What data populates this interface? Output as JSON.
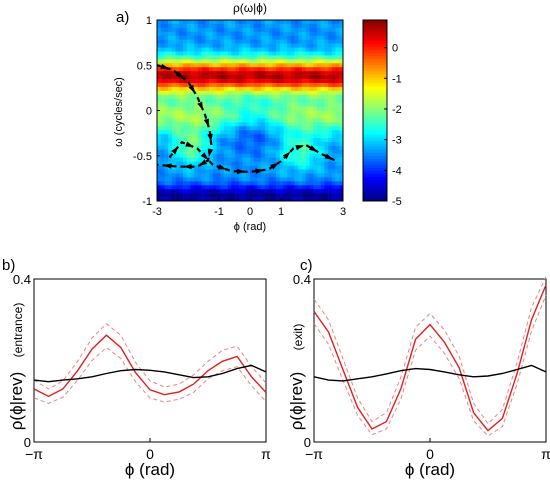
{
  "chart_data": [
    {
      "panel": "a)",
      "type": "heatmap",
      "title": "ρ(ω|ϕ)",
      "xlabel": "ϕ (rad)",
      "ylabel": "ω (cycles/sec)",
      "xlim": [
        -3,
        3
      ],
      "ylim": [
        -1,
        1
      ],
      "x_ticks": [
        "-3",
        "-1",
        "0",
        "1",
        "3"
      ],
      "y_ticks": [
        "1",
        "0.5",
        "0",
        "-0.5",
        "-1"
      ],
      "colorbar": {
        "ticks": [
          "0",
          "-1",
          "-2",
          "-3",
          "-4",
          "-5"
        ],
        "range": [
          -5,
          0.9
        ],
        "colormap": "jet"
      },
      "features": [
        {
          "description": "high-density band",
          "omega_center": 0.38,
          "omega_width": 0.18,
          "value": 0.6
        },
        {
          "description": "moderate ridge near zero",
          "omega_center": -0.05,
          "value": -1.7
        },
        {
          "description": "low-density band",
          "omega_center": -0.7,
          "value": -3.0
        }
      ],
      "overlay_curves": [
        {
          "style": "dashed-arrow",
          "points": [
            [
              -3.0,
              0.5
            ],
            [
              -2.5,
              0.45
            ],
            [
              -2.0,
              0.32
            ],
            [
              -1.7,
              0.15
            ],
            [
              -1.45,
              -0.05
            ],
            [
              -1.3,
              -0.22
            ],
            [
              -1.25,
              -0.38
            ],
            [
              -1.35,
              -0.55
            ],
            [
              -1.7,
              -0.62
            ],
            [
              -2.3,
              -0.62
            ],
            [
              -3.0,
              -0.6
            ]
          ]
        },
        {
          "style": "dashed-arrow",
          "points": [
            [
              -2.6,
              -0.52
            ],
            [
              -2.2,
              -0.35
            ],
            [
              -1.7,
              -0.42
            ],
            [
              -1.2,
              -0.6
            ],
            [
              -0.6,
              -0.67
            ],
            [
              0.0,
              -0.68
            ],
            [
              0.6,
              -0.65
            ],
            [
              1.0,
              -0.56
            ],
            [
              1.4,
              -0.42
            ],
            [
              1.8,
              -0.38
            ],
            [
              2.3,
              -0.48
            ],
            [
              2.8,
              -0.56
            ]
          ]
        }
      ]
    },
    {
      "panel": "b)",
      "type": "line",
      "xlabel": "ϕ (rad)",
      "ylabel": "ρ(ϕ|rev)",
      "ylabel_sub": "(entrance)",
      "xlim": [
        -3.1416,
        3.1416
      ],
      "ylim": [
        0,
        0.4
      ],
      "x_ticks": [
        "−π",
        "0",
        "π"
      ],
      "y_ticks": [
        "0.4",
        "0"
      ],
      "x": [
        -3.14,
        -2.75,
        -2.36,
        -1.96,
        -1.57,
        -1.18,
        -0.79,
        -0.39,
        0.0,
        0.39,
        0.79,
        1.18,
        1.57,
        1.96,
        2.36,
        2.75,
        3.14
      ],
      "series": [
        {
          "color": "#000000",
          "style": "solid",
          "values": [
            0.152,
            0.148,
            0.152,
            0.155,
            0.16,
            0.168,
            0.175,
            0.178,
            0.176,
            0.172,
            0.165,
            0.158,
            0.16,
            0.168,
            0.18,
            0.188,
            0.172
          ]
        },
        {
          "color": "#e02020",
          "style": "solid",
          "values": [
            0.13,
            0.112,
            0.13,
            0.175,
            0.228,
            0.262,
            0.232,
            0.17,
            0.128,
            0.116,
            0.123,
            0.142,
            0.175,
            0.198,
            0.21,
            0.16,
            0.122
          ]
        },
        {
          "color": "#f08080",
          "style": "dashed",
          "values": [
            0.152,
            0.13,
            0.15,
            0.198,
            0.255,
            0.29,
            0.262,
            0.195,
            0.15,
            0.135,
            0.142,
            0.165,
            0.198,
            0.225,
            0.235,
            0.185,
            0.145
          ]
        },
        {
          "color": "#f08080",
          "style": "dashed",
          "values": [
            0.108,
            0.095,
            0.11,
            0.152,
            0.2,
            0.232,
            0.205,
            0.148,
            0.108,
            0.098,
            0.105,
            0.122,
            0.155,
            0.175,
            0.185,
            0.138,
            0.1
          ]
        }
      ]
    },
    {
      "panel": "c)",
      "type": "line",
      "xlabel": "ϕ (rad)",
      "ylabel": "ρ(ϕ|rev)",
      "ylabel_sub": "(exit)",
      "xlim": [
        -3.1416,
        3.1416
      ],
      "ylim": [
        0,
        0.4
      ],
      "x_ticks": [
        "−π",
        "0",
        "π"
      ],
      "y_ticks": [
        "0.4",
        "0"
      ],
      "x": [
        -3.14,
        -2.75,
        -2.36,
        -1.96,
        -1.57,
        -1.18,
        -0.79,
        -0.39,
        0.0,
        0.39,
        0.79,
        1.18,
        1.57,
        1.96,
        2.36,
        2.75,
        3.14
      ],
      "series": [
        {
          "color": "#000000",
          "style": "solid",
          "values": [
            0.16,
            0.152,
            0.15,
            0.155,
            0.16,
            0.167,
            0.175,
            0.18,
            0.178,
            0.172,
            0.165,
            0.16,
            0.162,
            0.168,
            0.178,
            0.188,
            0.172
          ]
        },
        {
          "color": "#e02020",
          "style": "solid",
          "values": [
            0.32,
            0.27,
            0.178,
            0.085,
            0.032,
            0.05,
            0.13,
            0.252,
            0.288,
            0.245,
            0.182,
            0.072,
            0.028,
            0.058,
            0.168,
            0.3,
            0.385
          ]
        },
        {
          "color": "#f08080",
          "style": "dashed",
          "values": [
            0.35,
            0.3,
            0.205,
            0.108,
            0.05,
            0.072,
            0.158,
            0.282,
            0.315,
            0.275,
            0.21,
            0.095,
            0.045,
            0.08,
            0.195,
            0.33,
            0.405
          ]
        },
        {
          "color": "#f08080",
          "style": "dashed",
          "values": [
            0.29,
            0.24,
            0.152,
            0.065,
            0.018,
            0.032,
            0.105,
            0.225,
            0.26,
            0.218,
            0.155,
            0.052,
            0.015,
            0.038,
            0.142,
            0.272,
            0.36
          ]
        }
      ]
    }
  ]
}
